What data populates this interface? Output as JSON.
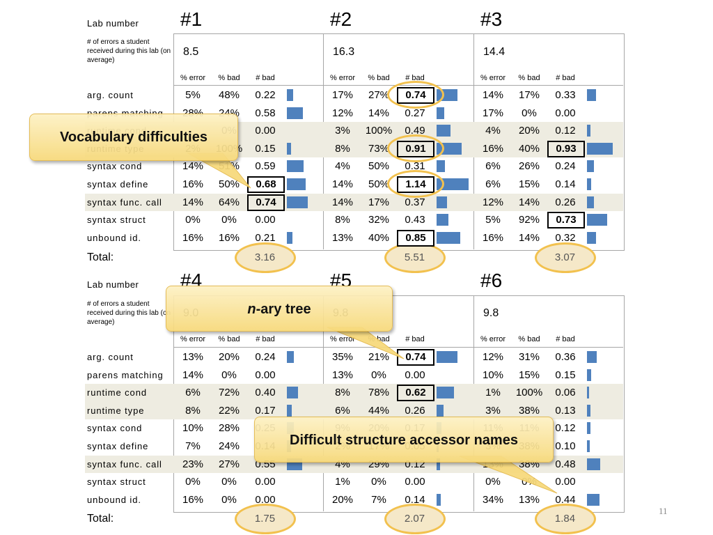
{
  "labels": {
    "lab_number": "Lab number",
    "errors_desc": "# of errors a student received during this lab (on average)",
    "total": "Total:"
  },
  "col_headers": [
    "% error",
    "% bad",
    "# bad"
  ],
  "row_labels": [
    "arg. count",
    "parens matching",
    "runtime cond",
    "runtime type",
    "syntax cond",
    "syntax define",
    "syntax func. call",
    "syntax struct",
    "unbound id."
  ],
  "labs": [
    {
      "label": "#1",
      "avg": "8.5",
      "total": "3.16",
      "rows": [
        [
          "5%",
          "48%",
          "0.22"
        ],
        [
          "28%",
          "24%",
          "0.58"
        ],
        [
          "",
          "0%",
          "0.00"
        ],
        [
          "2%",
          "100%",
          "0.15"
        ],
        [
          "14%",
          "51%",
          "0.59"
        ],
        [
          "16%",
          "50%",
          "0.68"
        ],
        [
          "14%",
          "64%",
          "0.74"
        ],
        [
          "0%",
          "0%",
          "0.00"
        ],
        [
          "16%",
          "16%",
          "0.21"
        ]
      ]
    },
    {
      "label": "#2",
      "avg": "16.3",
      "total": "5.51",
      "rows": [
        [
          "17%",
          "27%",
          "0.74"
        ],
        [
          "12%",
          "14%",
          "0.27"
        ],
        [
          "3%",
          "100%",
          "0.49"
        ],
        [
          "8%",
          "73%",
          "0.91"
        ],
        [
          "4%",
          "50%",
          "0.31"
        ],
        [
          "14%",
          "50%",
          "1.14"
        ],
        [
          "14%",
          "17%",
          "0.37"
        ],
        [
          "8%",
          "32%",
          "0.43"
        ],
        [
          "13%",
          "40%",
          "0.85"
        ]
      ]
    },
    {
      "label": "#3",
      "avg": "14.4",
      "total": "3.07",
      "rows": [
        [
          "14%",
          "17%",
          "0.33"
        ],
        [
          "17%",
          "0%",
          "0.00"
        ],
        [
          "4%",
          "20%",
          "0.12"
        ],
        [
          "16%",
          "40%",
          "0.93"
        ],
        [
          "6%",
          "26%",
          "0.24"
        ],
        [
          "6%",
          "15%",
          "0.14"
        ],
        [
          "12%",
          "14%",
          "0.26"
        ],
        [
          "5%",
          "92%",
          "0.73"
        ],
        [
          "16%",
          "14%",
          "0.32"
        ]
      ]
    },
    {
      "label": "#4",
      "avg": "9.0",
      "total": "1.75",
      "rows": [
        [
          "13%",
          "20%",
          "0.24"
        ],
        [
          "14%",
          "0%",
          "0.00"
        ],
        [
          "6%",
          "72%",
          "0.40"
        ],
        [
          "8%",
          "22%",
          "0.17"
        ],
        [
          "10%",
          "28%",
          "0.25"
        ],
        [
          "7%",
          "24%",
          "0.14"
        ],
        [
          "23%",
          "27%",
          "0.55"
        ],
        [
          "0%",
          "0%",
          "0.00"
        ],
        [
          "16%",
          "0%",
          "0.00"
        ]
      ]
    },
    {
      "label": "#5",
      "avg": "9.8",
      "total": "2.07",
      "rows": [
        [
          "35%",
          "21%",
          "0.74"
        ],
        [
          "13%",
          "0%",
          "0.00"
        ],
        [
          "8%",
          "78%",
          "0.62"
        ],
        [
          "6%",
          "44%",
          "0.26"
        ],
        [
          "9%",
          "20%",
          "0.17"
        ],
        [
          "2%",
          "17%",
          "0.05"
        ],
        [
          "4%",
          "29%",
          "0.12"
        ],
        [
          "1%",
          "0%",
          "0.00"
        ],
        [
          "20%",
          "7%",
          "0.14"
        ]
      ]
    },
    {
      "label": "#6",
      "avg": "9.8",
      "total": "1.84",
      "rows": [
        [
          "12%",
          "31%",
          "0.36"
        ],
        [
          "10%",
          "15%",
          "0.15"
        ],
        [
          "1%",
          "100%",
          "0.06"
        ],
        [
          "3%",
          "38%",
          "0.13"
        ],
        [
          "11%",
          "11%",
          "0.12"
        ],
        [
          "3%",
          "38%",
          "0.10"
        ],
        [
          "13%",
          "38%",
          "0.48"
        ],
        [
          "0%",
          "0%",
          "0.00"
        ],
        [
          "34%",
          "13%",
          "0.44"
        ]
      ]
    }
  ],
  "callouts": {
    "vocab": "Vocabulary difficulties",
    "nary_italic": "n",
    "nary_rest": "-ary tree",
    "accessor": "Difficult structure accessor names"
  },
  "page_number": "11",
  "colors": {
    "bar": "#4f81bd",
    "stripe": "#eeece1",
    "callout_fill": "#f7d97a",
    "ring": "#f2c14e"
  }
}
